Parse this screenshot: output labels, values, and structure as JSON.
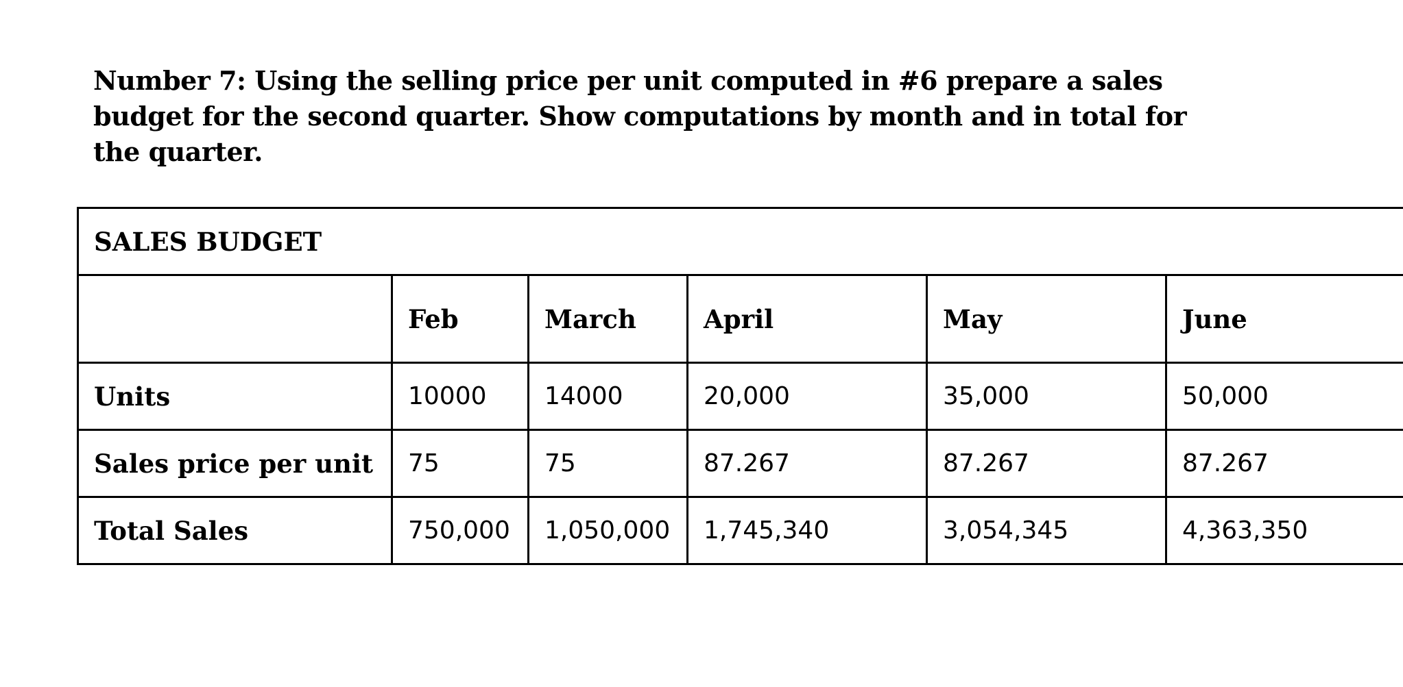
{
  "question": {
    "text": "Number 7: Using the selling price per unit computed in #6 prepare a sales budget for the second quarter. Show computations by month and in total for the quarter."
  },
  "table": {
    "title": "SALES BUDGET",
    "columns": [
      "",
      "Feb",
      "March",
      "April",
      "May",
      "June"
    ],
    "rows": [
      {
        "label": "Units",
        "values": [
          "10000",
          "14000",
          "20,000",
          "35,000",
          "50,000"
        ]
      },
      {
        "label": "Sales price per unit",
        "values": [
          "75",
          "75",
          "87.267",
          "87.267",
          "87.267"
        ]
      },
      {
        "label": "Total Sales",
        "values": [
          "750,000",
          "1,050,000",
          "1,745,340",
          "3,054,345",
          "4,363,350"
        ]
      }
    ]
  }
}
